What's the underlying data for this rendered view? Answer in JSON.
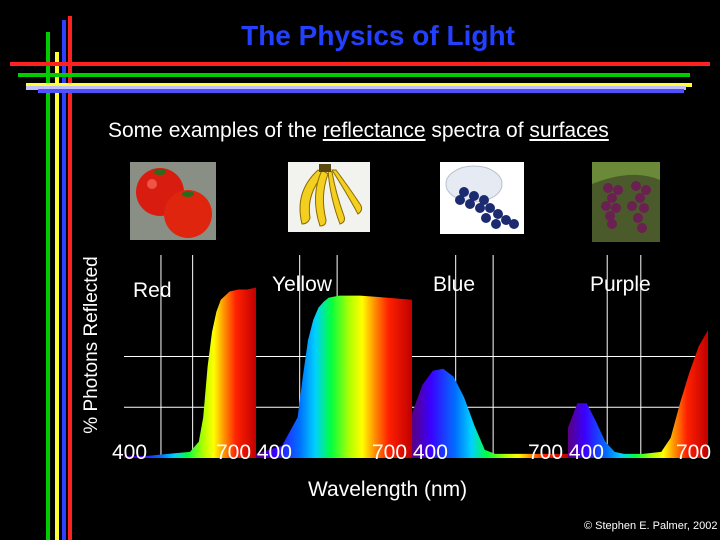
{
  "title": "The Physics of Light",
  "subtitle": {
    "part1": "Some examples of the ",
    "link1": "reflectance",
    "part2": " spectra of ",
    "link2": "surfaces"
  },
  "copyright": "© Stephen E. Palmer, 2002",
  "photos": [
    "tomatoes",
    "bananas",
    "blueberries",
    "grapes"
  ],
  "chart_data": [
    {
      "type": "area",
      "series_label": "Red",
      "xlabel": "Wavelength (nm)",
      "ylabel": "% Photons Reflected",
      "x_tick_labels": [
        "400",
        "700"
      ],
      "x": [
        400,
        450,
        500,
        550,
        570,
        580,
        590,
        600,
        610,
        620,
        640,
        660,
        680,
        700
      ],
      "values": [
        0.01,
        0.01,
        0.02,
        0.03,
        0.08,
        0.2,
        0.45,
        0.62,
        0.72,
        0.78,
        0.82,
        0.83,
        0.83,
        0.84
      ]
    },
    {
      "type": "area",
      "series_label": "Yellow",
      "xlabel": "Wavelength (nm)",
      "ylabel": "% Photons Reflected",
      "x_tick_labels": [
        "700",
        "400"
      ],
      "x": [
        400,
        450,
        480,
        490,
        500,
        510,
        520,
        530,
        540,
        560,
        600,
        650,
        700
      ],
      "values": [
        0.02,
        0.06,
        0.2,
        0.4,
        0.58,
        0.68,
        0.74,
        0.77,
        0.79,
        0.8,
        0.8,
        0.79,
        0.78
      ]
    },
    {
      "type": "area",
      "series_label": "Blue",
      "xlabel": "Wavelength (nm)",
      "ylabel": "% Photons Reflected",
      "x_tick_labels": [
        "700",
        "400"
      ],
      "x": [
        400,
        420,
        440,
        460,
        480,
        500,
        520,
        540,
        560,
        580,
        600,
        650,
        700
      ],
      "values": [
        0.22,
        0.36,
        0.43,
        0.44,
        0.4,
        0.3,
        0.16,
        0.04,
        0.02,
        0.02,
        0.02,
        0.02,
        0.02
      ]
    },
    {
      "type": "area",
      "series_label": "Purple",
      "xlabel": "Wavelength (nm)",
      "ylabel": "% Photons Reflected",
      "x_tick_labels": [
        "700",
        "400",
        "700"
      ],
      "x": [
        400,
        420,
        440,
        460,
        480,
        500,
        520,
        560,
        600,
        620,
        640,
        660,
        680,
        700
      ],
      "values": [
        0.15,
        0.27,
        0.27,
        0.18,
        0.08,
        0.03,
        0.02,
        0.02,
        0.03,
        0.1,
        0.27,
        0.42,
        0.55,
        0.63
      ]
    }
  ],
  "tick_labels": [
    "400",
    "700 400",
    "700 400",
    "700 400",
    "700"
  ],
  "accent_colors": {
    "title": "#2340ff",
    "stripes": [
      "#3040ff",
      "#ffff33",
      "#00dd00",
      "#ff2020"
    ]
  }
}
